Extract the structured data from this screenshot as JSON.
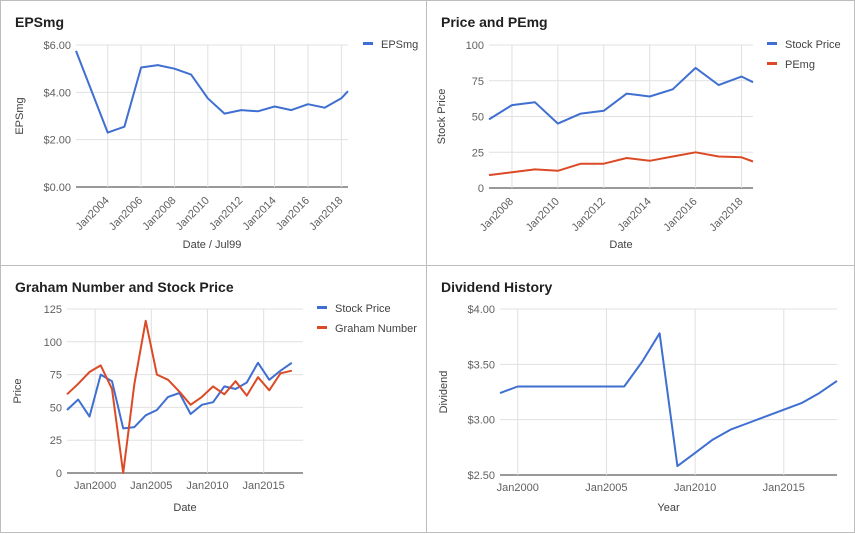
{
  "chart_data": [
    {
      "type": "line",
      "title": "EPSmg",
      "xlabel": "Date / Jul99",
      "ylabel": "EPSmg",
      "x_tick_labels": [
        "Jan2004",
        "Jan2006",
        "Jan2008",
        "Jan2010",
        "Jan2012",
        "Jan2014",
        "Jan2016",
        "Jan2018"
      ],
      "x_ticks": [
        2004,
        2006,
        2008,
        2010,
        2012,
        2014,
        2016,
        2018
      ],
      "xlim": [
        2002.1,
        2018.4
      ],
      "y_tick_labels": [
        "$0.00",
        "$2.00",
        "$4.00",
        "$6.00"
      ],
      "y_ticks": [
        0,
        2,
        4,
        6
      ],
      "ylim": [
        0,
        6
      ],
      "grid": true,
      "legend": "right",
      "series": [
        {
          "name": "EPSmg",
          "color": "#3f6fd1",
          "x": [
            2002.1,
            2004,
            2005,
            2006,
            2007,
            2008,
            2009,
            2010,
            2011,
            2012,
            2013,
            2014,
            2015,
            2016,
            2017,
            2018,
            2018.4
          ],
          "y": [
            5.75,
            2.3,
            2.55,
            5.05,
            5.15,
            5.0,
            4.75,
            3.75,
            3.1,
            3.25,
            3.2,
            3.4,
            3.25,
            3.5,
            3.35,
            3.75,
            4.05
          ]
        }
      ]
    },
    {
      "type": "line",
      "title": "Price and PEmg",
      "xlabel": "Date",
      "ylabel": "Stock Price",
      "x_tick_labels": [
        "Jan2008",
        "Jan2010",
        "Jan2012",
        "Jan2014",
        "Jan2016",
        "Jan2018"
      ],
      "x_ticks": [
        2008,
        2010,
        2012,
        2014,
        2016,
        2018
      ],
      "xlim": [
        2007,
        2018.5
      ],
      "y_tick_labels": [
        "0",
        "25",
        "50",
        "75",
        "100"
      ],
      "y_ticks": [
        0,
        25,
        50,
        75,
        100
      ],
      "ylim": [
        0,
        100
      ],
      "grid": true,
      "legend": "right",
      "series": [
        {
          "name": "Stock Price",
          "color": "#3f6fd1",
          "x": [
            2007,
            2008,
            2009,
            2010,
            2011,
            2012,
            2013,
            2014,
            2015,
            2016,
            2017,
            2018,
            2018.5
          ],
          "y": [
            48,
            58,
            60,
            45,
            52,
            54,
            66,
            64,
            69,
            84,
            72,
            78,
            74
          ]
        },
        {
          "name": "PEmg",
          "color": "#dc4a25",
          "x": [
            2007,
            2008,
            2009,
            2010,
            2011,
            2012,
            2013,
            2014,
            2015,
            2016,
            2017,
            2018,
            2018.5
          ],
          "y": [
            9,
            11,
            13,
            12,
            17,
            17,
            21,
            19,
            22,
            25,
            22,
            21.5,
            18.5
          ]
        }
      ]
    },
    {
      "type": "line",
      "title": "Graham Number and Stock Price",
      "xlabel": "Date",
      "ylabel": "Price",
      "x_tick_labels": [
        "Jan2000",
        "Jan2005",
        "Jan2010",
        "Jan2015"
      ],
      "x_ticks": [
        2000,
        2005,
        2010,
        2015
      ],
      "xlim": [
        1997.5,
        2018.5
      ],
      "y_tick_labels": [
        "0",
        "25",
        "50",
        "75",
        "100",
        "125"
      ],
      "y_ticks": [
        0,
        25,
        50,
        75,
        100,
        125
      ],
      "ylim": [
        0,
        125
      ],
      "grid": true,
      "legend": "right",
      "series": [
        {
          "name": "Stock Price",
          "color": "#3f6fd1",
          "x": [
            1997.5,
            1998.5,
            1999.5,
            2000.5,
            2001.5,
            2002.5,
            2003.5,
            2004.5,
            2005.5,
            2006.5,
            2007.5,
            2008.5,
            2009.5,
            2010.5,
            2011.5,
            2012.5,
            2013.5,
            2014.5,
            2015.5,
            2016.5,
            2017.5
          ],
          "y": [
            48,
            56,
            43,
            75,
            70,
            34,
            35,
            44,
            48,
            58,
            61,
            45,
            52,
            54,
            66,
            64,
            69,
            84,
            71,
            78,
            84
          ]
        },
        {
          "name": "Graham Number",
          "color": "#dc4a25",
          "x": [
            1997.5,
            1998.5,
            1999.5,
            2000.5,
            2001.5,
            2002.5,
            2003.5,
            2004.5,
            2005.5,
            2006.5,
            2007.5,
            2008.5,
            2009.5,
            2010.5,
            2011.5,
            2012.5,
            2013.5,
            2014.5,
            2015.5,
            2016.5,
            2017.5
          ],
          "y": [
            60,
            68,
            77,
            82,
            64,
            0,
            68,
            116,
            75,
            71,
            62,
            52,
            58,
            66,
            60,
            70,
            59,
            73,
            63,
            76,
            78
          ]
        }
      ]
    },
    {
      "type": "line",
      "title": "Dividend History",
      "xlabel": "Year",
      "ylabel": "Dividend",
      "x_tick_labels": [
        "Jan2000",
        "Jan2005",
        "Jan2010",
        "Jan2015"
      ],
      "x_ticks": [
        2000,
        2005,
        2010,
        2015
      ],
      "xlim": [
        1999,
        2018
      ],
      "y_tick_labels": [
        "$2.50",
        "$3.00",
        "$3.50",
        "$4.00"
      ],
      "y_ticks": [
        2.5,
        3.0,
        3.5,
        4.0
      ],
      "ylim": [
        2.5,
        4.0
      ],
      "grid": true,
      "legend": "none",
      "series": [
        {
          "color": "#3f6fd1",
          "x": [
            1999,
            2000,
            2001,
            2002,
            2003,
            2004,
            2005,
            2006,
            2007,
            2008,
            2009,
            2010,
            2011,
            2012,
            2013,
            2014,
            2015,
            2016,
            2017,
            2018
          ],
          "y": [
            3.24,
            3.3,
            3.3,
            3.3,
            3.3,
            3.3,
            3.3,
            3.3,
            3.52,
            3.78,
            2.58,
            2.7,
            2.82,
            2.91,
            2.97,
            3.03,
            3.09,
            3.15,
            3.24,
            3.35
          ]
        }
      ]
    }
  ]
}
